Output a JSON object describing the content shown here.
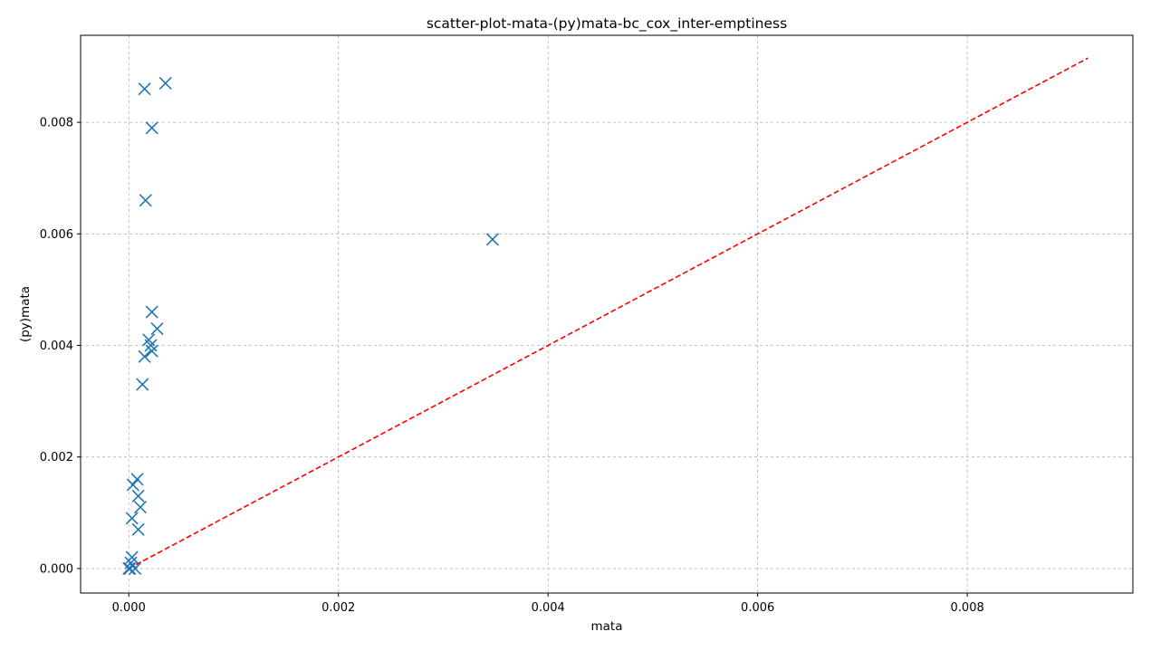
{
  "chart_data": {
    "type": "scatter",
    "title": "scatter-plot-mata-(py)mata-bc_cox_inter-emptiness",
    "xlabel": "mata",
    "ylabel": "(py)mata",
    "xlim": [
      -0.00046,
      0.00958
    ],
    "ylim": [
      -0.00044,
      0.00956
    ],
    "xticks": [
      0.0,
      0.002,
      0.004,
      0.006,
      0.008
    ],
    "yticks": [
      0.0,
      0.002,
      0.004,
      0.006,
      0.008
    ],
    "xtick_labels": [
      "0.000",
      "0.002",
      "0.004",
      "0.006",
      "0.008"
    ],
    "ytick_labels": [
      "0.000",
      "0.002",
      "0.004",
      "0.006",
      "0.008"
    ],
    "grid": true,
    "series": [
      {
        "marker": "x",
        "color": "#1f77b4",
        "points": [
          [
            0.00035,
            0.0087
          ],
          [
            0.00015,
            0.0086
          ],
          [
            0.00022,
            0.0079
          ],
          [
            0.00016,
            0.0066
          ],
          [
            0.00347,
            0.0059
          ],
          [
            0.00022,
            0.0046
          ],
          [
            0.00027,
            0.0043
          ],
          [
            0.00019,
            0.0041
          ],
          [
            0.00021,
            0.004
          ],
          [
            0.00022,
            0.0039
          ],
          [
            0.00015,
            0.0038
          ],
          [
            0.00013,
            0.0033
          ],
          [
            8e-05,
            0.0016
          ],
          [
            4e-05,
            0.0015
          ],
          [
            9e-05,
            0.0013
          ],
          [
            0.00011,
            0.0011
          ],
          [
            3e-05,
            0.0009
          ],
          [
            9e-05,
            0.0007
          ],
          [
            3e-05,
            0.0002
          ],
          [
            2e-05,
            0.0001
          ],
          [
            1e-05,
            0.0
          ],
          [
            6e-05,
            0.0
          ],
          [
            0.0,
            0.0
          ]
        ]
      },
      {
        "line_style": "dashed",
        "color": "#ff0000",
        "points": [
          [
            0.0,
            0.0
          ],
          [
            0.00915,
            0.00915
          ]
        ]
      }
    ]
  }
}
